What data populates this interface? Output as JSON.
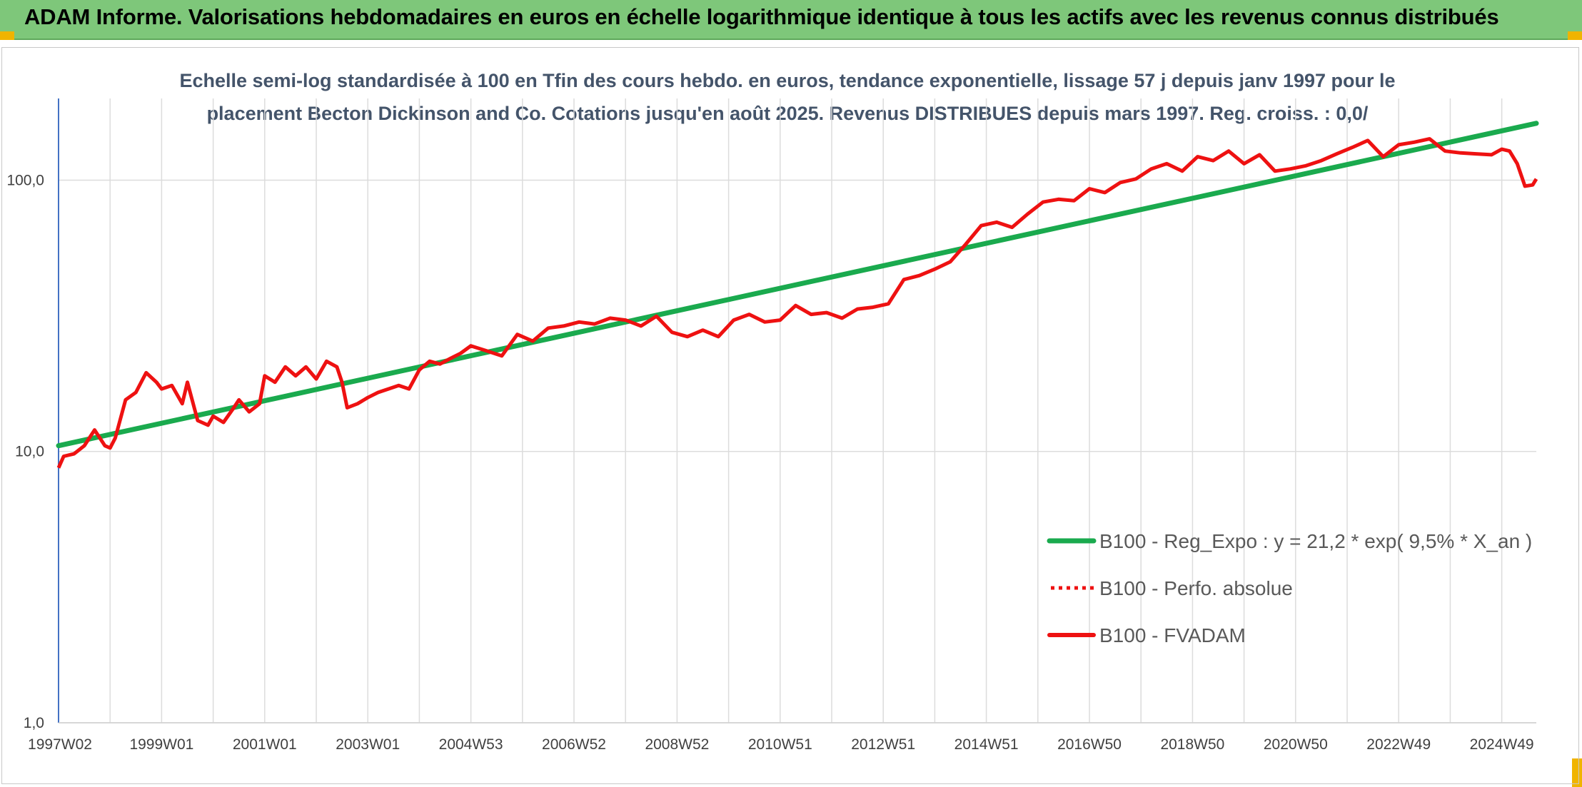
{
  "header": {
    "title": "ADAM Informe. Valorisations hebdomadaires en euros en échelle logarithmique identique à tous les actifs avec les revenus connus distribués"
  },
  "colors": {
    "header_bg": "#7ec77a",
    "corner": "#f0b400",
    "regression": "#1aaa4e",
    "fvadam": "#ee1111",
    "perfo": "#ee1111",
    "grid": "#dcdcdc",
    "axis": "#4472c4"
  },
  "chart_data": {
    "type": "line",
    "title_lines": [
      "Echelle semi-log standardisée à 100 en Tfin des cours hebdo. en euros, tendance exponentielle, lissage 57 j depuis janv 1997 pour le",
      "placement Becton Dickinson and Co. Cotations jusqu'en août 2025. Revenus DISTRIBUES depuis mars 1997. Reg. croiss. : 0,0/"
    ],
    "y_scale": "log",
    "ylim": [
      1,
      200
    ],
    "y_ticks": [
      1,
      10,
      100
    ],
    "y_tick_labels": [
      "1,0",
      "10,0",
      "100,0"
    ],
    "xlim": [
      1997.0,
      2025.67
    ],
    "x_tick_labels": [
      "1997W02",
      "1999W01",
      "2001W01",
      "2003W01",
      "2004W53",
      "2006W52",
      "2008W52",
      "2010W51",
      "2012W51",
      "2014W51",
      "2016W50",
      "2018W50",
      "2020W50",
      "2022W49",
      "2024W49"
    ],
    "x_tick_years": [
      1997.0,
      1999.0,
      2001.0,
      2003.0,
      2005.0,
      2007.0,
      2009.0,
      2011.0,
      2013.0,
      2015.0,
      2017.0,
      2019.0,
      2021.0,
      2023.0,
      2025.0
    ],
    "grid": "vertical every 1 year, horizontal at y ticks",
    "legend_position": "bottom-right",
    "series": [
      {
        "name": "B100 - Reg_Expo : y = 21,2 * exp( 9,5% *  X_an )",
        "style": "solid",
        "x": [
          1997.0,
          2025.67
        ],
        "y": [
          10.5,
          162
        ]
      },
      {
        "name": "B100 - Perfo. absolue",
        "style": "dotted",
        "x": [],
        "y": []
      },
      {
        "name": "B100 - FVADAM",
        "style": "solid",
        "x": [
          1997.0,
          1997.1,
          1997.3,
          1997.5,
          1997.7,
          1997.9,
          1998.0,
          1998.1,
          1998.3,
          1998.5,
          1998.7,
          1998.9,
          1999.0,
          1999.2,
          1999.4,
          1999.5,
          1999.7,
          1999.9,
          2000.0,
          2000.2,
          2000.4,
          2000.5,
          2000.7,
          2000.9,
          2001.0,
          2001.2,
          2001.4,
          2001.6,
          2001.8,
          2002.0,
          2002.2,
          2002.4,
          2002.5,
          2002.6,
          2002.8,
          2003.0,
          2003.2,
          2003.4,
          2003.6,
          2003.8,
          2004.0,
          2004.2,
          2004.4,
          2004.6,
          2004.8,
          2005.0,
          2005.3,
          2005.6,
          2005.9,
          2006.2,
          2006.5,
          2006.8,
          2007.1,
          2007.4,
          2007.7,
          2008.0,
          2008.3,
          2008.6,
          2008.9,
          2009.2,
          2009.5,
          2009.8,
          2010.1,
          2010.4,
          2010.7,
          2011.0,
          2011.3,
          2011.6,
          2011.9,
          2012.2,
          2012.5,
          2012.8,
          2013.1,
          2013.4,
          2013.7,
          2014.0,
          2014.3,
          2014.6,
          2014.9,
          2015.2,
          2015.5,
          2015.8,
          2016.1,
          2016.4,
          2016.7,
          2017.0,
          2017.3,
          2017.6,
          2017.9,
          2018.2,
          2018.5,
          2018.8,
          2019.1,
          2019.4,
          2019.7,
          2020.0,
          2020.3,
          2020.6,
          2020.9,
          2021.2,
          2021.5,
          2021.8,
          2022.1,
          2022.4,
          2022.7,
          2023.0,
          2023.3,
          2023.6,
          2023.9,
          2024.2,
          2024.5,
          2024.8,
          2025.0,
          2025.15,
          2025.3,
          2025.45,
          2025.6,
          2025.67
        ],
        "y": [
          8.7,
          9.6,
          9.8,
          10.5,
          12.0,
          10.5,
          10.3,
          11.2,
          15.5,
          16.5,
          19.5,
          18.0,
          17.0,
          17.5,
          15.0,
          18.0,
          13.0,
          12.5,
          13.5,
          12.8,
          14.5,
          15.5,
          14.0,
          15.0,
          19.0,
          18.0,
          20.5,
          19.0,
          20.5,
          18.5,
          21.5,
          20.5,
          18.0,
          14.5,
          15.0,
          15.8,
          16.5,
          17.0,
          17.5,
          17.0,
          20.0,
          21.5,
          21.0,
          22.0,
          23.0,
          24.5,
          23.5,
          22.5,
          27.0,
          25.5,
          28.5,
          29.0,
          30.0,
          29.5,
          31.0,
          30.5,
          29.0,
          31.5,
          27.5,
          26.5,
          28.0,
          26.5,
          30.5,
          32.0,
          30.0,
          30.5,
          34.5,
          32.0,
          32.5,
          31.0,
          33.5,
          34.0,
          35.0,
          43.0,
          44.5,
          47.0,
          50.0,
          58.0,
          68.0,
          70.0,
          67.0,
          75.0,
          83.0,
          85.0,
          84.0,
          93.0,
          90.0,
          98.0,
          101.0,
          110.0,
          115.0,
          108.0,
          122.0,
          118.0,
          128.0,
          115.0,
          124.0,
          108.0,
          110.0,
          113.0,
          118.0,
          125.0,
          132.0,
          140.0,
          122.0,
          135.0,
          138.0,
          142.0,
          128.0,
          126.0,
          125.0,
          124.0,
          130.0,
          128.0,
          115.0,
          95.0,
          96.0,
          101.0
        ]
      }
    ]
  }
}
